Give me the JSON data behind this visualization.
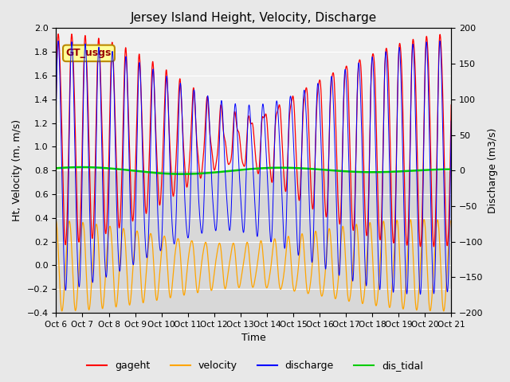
{
  "title": "Jersey Island Height, Velocity, Discharge",
  "xlabel": "Time",
  "ylabel_left": "Ht, Velocity (m, m/s)",
  "ylabel_right": "Discharge (m3/s)",
  "ylim_left": [
    -0.4,
    2.0
  ],
  "ylim_right": [
    -200,
    200
  ],
  "x_tick_labels": [
    "Oct 6",
    "Oct 7",
    "Oct 8",
    "Oct 9",
    "Oct 10",
    "Oct 11",
    "Oct 12",
    "Oct 13",
    "Oct 14",
    "Oct 15",
    "Oct 16",
    "Oct 17",
    "Oct 18",
    "Oct 19",
    "Oct 20",
    "Oct 21"
  ],
  "legend_labels": [
    "gageht",
    "velocity",
    "discharge",
    "dis_tidal"
  ],
  "legend_colors": [
    "#ff0000",
    "#ffa500",
    "#0000ff",
    "#00cc00"
  ],
  "annotation_text": "GT_usgs",
  "annotation_bg": "#ffff99",
  "annotation_border": "#bb8800",
  "fig_bg_color": "#e8e8e8",
  "plot_bg_color": "#d8d8d8",
  "upper_band_color": "#f0f0f0",
  "gageht_color": "#ff0000",
  "velocity_color": "#ffa500",
  "discharge_color": "#0000ff",
  "dis_tidal_color": "#00cc00",
  "num_points": 5000,
  "T1_hours": 12.42,
  "T2_hours": 12.0,
  "days": 15
}
